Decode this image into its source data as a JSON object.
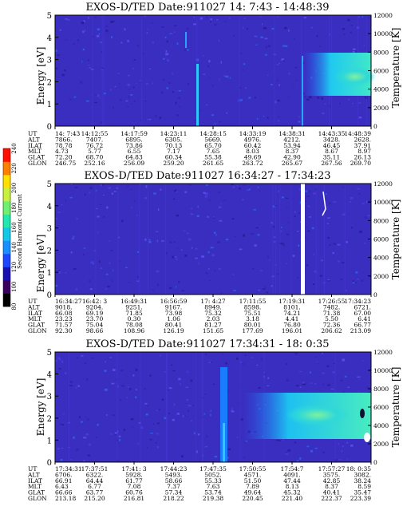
{
  "chart_data": [
    {
      "type": "heatmap",
      "title": "EXOS-D/TED   Date:911027  14: 7:43 - 14:48:39",
      "ylabel": "Energy [eV]",
      "ylabel_right": "Temperature [K]",
      "ylim": [
        0,
        5
      ],
      "y_ticks": [
        "0",
        "1",
        "2",
        "3",
        "4",
        "5"
      ],
      "y2lim": [
        0,
        12000
      ],
      "y2_ticks": [
        "0",
        "2000",
        "4000",
        "6000",
        "8000",
        "10000",
        "12000"
      ],
      "row_labels": [
        "UT",
        "ALT",
        "ILAT",
        "MLT",
        "GLAT",
        "GLON"
      ],
      "columns": [
        [
          "14: 7:43",
          "7866.",
          "78.78",
          "4.73",
          "72.20",
          "246.75"
        ],
        [
          "14:12:55",
          "7407.",
          "76.72",
          "5.77",
          "68.70",
          "252.16"
        ],
        [
          "14:17:59",
          "6895.",
          "73.86",
          "6.55",
          "64.83",
          "256.09"
        ],
        [
          "14:23:11",
          "6305.",
          "70.13",
          "7.17",
          "60.34",
          "259.20"
        ],
        [
          "14:28:15",
          "5669.",
          "65.70",
          "7.65",
          "55.38",
          "261.65"
        ],
        [
          "14:33:19",
          "4976.",
          "60.42",
          "8.03",
          "49.69",
          "263.72"
        ],
        [
          "14:38:31",
          "4212.",
          "53.94",
          "8.37",
          "42.90",
          "265.67"
        ],
        [
          "14:43:35",
          "3428.",
          "46.45",
          "8.67",
          "35.11",
          "267.56"
        ],
        [
          "14:48:39",
          "2628.",
          "37.91",
          "8.97",
          "26.13",
          "269.70"
        ]
      ]
    },
    {
      "type": "heatmap",
      "title": "EXOS-D/TED   Date:911027  16:34:27 - 17:34:23",
      "ylabel": "Energy [eV]",
      "ylabel_right": "Temperature [K]",
      "ylim": [
        0,
        5
      ],
      "y_ticks": [
        "0",
        "1",
        "2",
        "3",
        "4",
        "5"
      ],
      "y2lim": [
        0,
        12000
      ],
      "y2_ticks": [
        "0",
        "2000",
        "4000",
        "6000",
        "8000",
        "10000",
        "12000"
      ],
      "row_labels": [
        "UT",
        "ALT",
        "ILAT",
        "MLT",
        "GLAT",
        "GLON"
      ],
      "columns": [
        [
          "16:34:27",
          "9018.",
          "66.08",
          "23.23",
          "71.57",
          "92.30"
        ],
        [
          "16:42: 3",
          "9204.",
          "69.19",
          "23.70",
          "75.04",
          "98.66"
        ],
        [
          "16:49:31",
          "9251.",
          "71.85",
          "0.30",
          "78.08",
          "108.96"
        ],
        [
          "16:56:59",
          "9167.",
          "73.98",
          "1.06",
          "80.41",
          "126.19"
        ],
        [
          "17: 4:27",
          "8949.",
          "75.32",
          "2.03",
          "81.27",
          "151.65"
        ],
        [
          "17:11:55",
          "8598.",
          "75.51",
          "3.18",
          "80.01",
          "177.69"
        ],
        [
          "17:19:31",
          "8101.",
          "74.21",
          "4.41",
          "76.80",
          "196.01"
        ],
        [
          "17:26:55",
          "7482.",
          "71.38",
          "5.50",
          "72.36",
          "206.62"
        ],
        [
          "17:34:23",
          "6721.",
          "67.00",
          "6.41",
          "66.77",
          "213.09"
        ]
      ]
    },
    {
      "type": "heatmap",
      "title": "EXOS-D/TED   Date:911027  17:34:31 - 18: 0:35",
      "ylabel": "Energy [eV]",
      "ylabel_right": "Temperature [K]",
      "ylim": [
        0,
        5
      ],
      "y_ticks": [
        "0",
        "1",
        "2",
        "3",
        "4",
        "5"
      ],
      "y2lim": [
        0,
        12000
      ],
      "y2_ticks": [
        "0",
        "2000",
        "4000",
        "6000",
        "8000",
        "10000",
        "12000"
      ],
      "row_labels": [
        "UT",
        "ALT",
        "ILAT",
        "MLT",
        "GLAT",
        "GLON"
      ],
      "columns": [
        [
          "17:34:31",
          "6706.",
          "66.91",
          "6.43",
          "66.66",
          "213.18"
        ],
        [
          "17:37:51",
          "6322.",
          "64.44",
          "6.77",
          "63.77",
          "215.20"
        ],
        [
          "17:41: 3",
          "5928.",
          "61.77",
          "7.08",
          "60.76",
          "216.81"
        ],
        [
          "17:44:23",
          "5493.",
          "58.66",
          "7.37",
          "57.34",
          "218.22"
        ],
        [
          "17:47:35",
          "5052.",
          "55.33",
          "7.63",
          "53.74",
          "219.38"
        ],
        [
          "17:50:55",
          "4571.",
          "51.50",
          "7.89",
          "49.64",
          "220.45"
        ],
        [
          "17:54:7",
          "4091.",
          "47.44",
          "8.13",
          "45.32",
          "221.40"
        ],
        [
          "17:57:27",
          "3575.",
          "42.85",
          "8.37",
          "40.41",
          "222.37"
        ],
        [
          "18: 0:35",
          "3082.",
          "38.24",
          "8.59",
          "35.47",
          "223.39"
        ]
      ]
    }
  ],
  "colorbar": {
    "label": "Second Harmonic Current",
    "ticks": [
      "80",
      "100",
      "120",
      "140",
      "160",
      "180",
      "200",
      "220",
      "240"
    ],
    "colors": [
      "#000000",
      "#3a0060",
      "#1a10b0",
      "#1e46ff",
      "#1890ff",
      "#12c8e8",
      "#20e8b0",
      "#70f070",
      "#c8f040",
      "#ffe000",
      "#ff8000",
      "#ff1000"
    ]
  }
}
